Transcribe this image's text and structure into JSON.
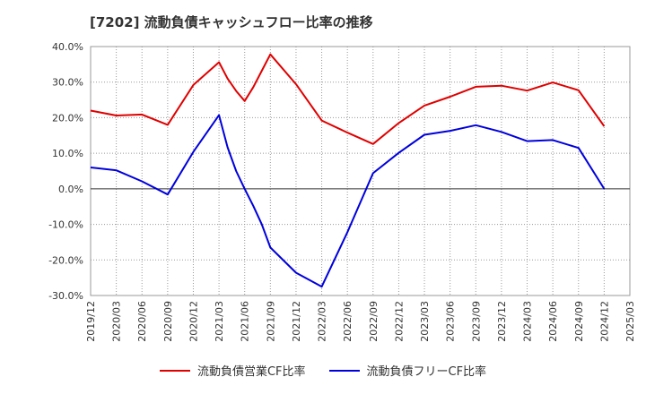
{
  "title": "[7202]  流動負債キャッシュフロー比率の推移",
  "chart_data": {
    "type": "line",
    "x": [
      "2019/12",
      "2020/03",
      "2020/06",
      "2020/09",
      "2020/12",
      "2021/03",
      "2021/04",
      "2021/05",
      "2021/06",
      "2021/07",
      "2021/08",
      "2021/09",
      "2021/12",
      "2022/03",
      "2022/06",
      "2022/09",
      "2022/12",
      "2023/03",
      "2023/06",
      "2023/09",
      "2023/12",
      "2024/03",
      "2024/06",
      "2024/09",
      "2024/12"
    ],
    "x_ticks": [
      "2019/12",
      "2020/03",
      "2020/06",
      "2020/09",
      "2020/12",
      "2021/03",
      "2021/06",
      "2021/09",
      "2021/12",
      "2022/03",
      "2022/06",
      "2022/09",
      "2022/12",
      "2023/03",
      "2023/06",
      "2023/09",
      "2023/12",
      "2024/03",
      "2024/06",
      "2024/09",
      "2024/12",
      "2025/03"
    ],
    "y_ticks": [
      "40.0%",
      "30.0%",
      "20.0%",
      "10.0%",
      "0.0%",
      "-10.0%",
      "-20.0%",
      "-30.0%"
    ],
    "ylim": [
      -30,
      40
    ],
    "xlabel": "",
    "ylabel": "",
    "grid": true,
    "legend_position": "bottom",
    "series": [
      {
        "name": "流動負債営業CF比率",
        "color": "#e00000",
        "values": [
          22.0,
          20.6,
          20.9,
          18.0,
          29.2,
          35.6,
          31.0,
          27.5,
          24.7,
          28.6,
          33.2,
          37.8,
          29.4,
          19.2,
          15.8,
          12.6,
          18.5,
          23.4,
          25.9,
          28.7,
          29.0,
          27.6,
          29.9,
          27.7,
          17.6
        ]
      },
      {
        "name": "流動負債フリーCF比率",
        "color": "#0000dd",
        "values": [
          6.0,
          5.2,
          2.1,
          -1.6,
          10.4,
          20.7,
          11.7,
          5.0,
          0.0,
          -4.8,
          -10.0,
          -16.5,
          -23.6,
          -27.5,
          -12.2,
          4.4,
          10.1,
          15.2,
          16.3,
          17.9,
          16.0,
          13.4,
          13.7,
          11.5,
          0.0
        ]
      }
    ]
  }
}
